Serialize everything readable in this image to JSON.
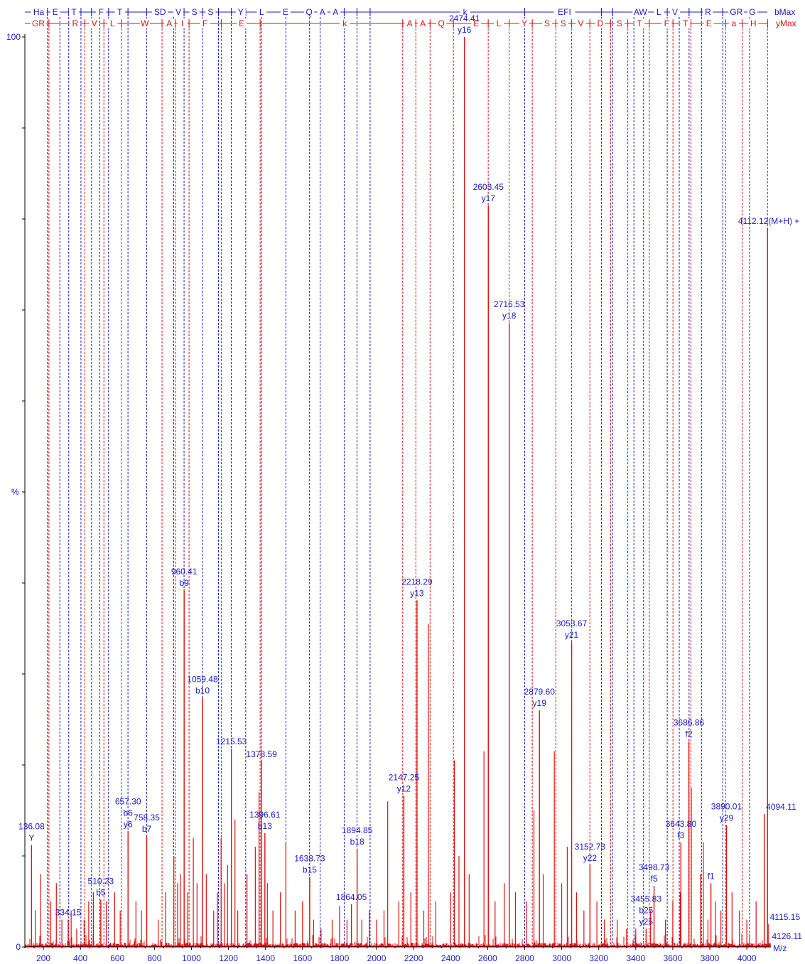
{
  "chart_data": {
    "type": "bar",
    "xlabel": "M/z",
    "ylabel": "%",
    "xlim": [
      100,
      4130
    ],
    "ylim": [
      0,
      100
    ],
    "xticks": [
      200,
      400,
      600,
      800,
      1000,
      1200,
      1400,
      1600,
      1800,
      2000,
      2200,
      2400,
      2600,
      2800,
      3000,
      3200,
      3400,
      3600,
      3800,
      4000
    ],
    "yticks": [
      0,
      100
    ],
    "colors": {
      "b_series": "#1a1acc",
      "y_series": "#e01010",
      "peaks": "#e01010"
    },
    "b_series": {
      "name": "bMax",
      "ladder": [
        {
          "label": "Ha",
          "x": 175
        },
        {
          "label": "E",
          "x": 264
        },
        {
          "label": "T",
          "x": 365
        },
        {
          "label": "F",
          "x": 512
        },
        {
          "label": "T",
          "x": 613
        },
        {
          "label": "SD",
          "x": 830
        },
        {
          "label": "V",
          "x": 929
        },
        {
          "label": "S",
          "x": 1016
        },
        {
          "label": "S",
          "x": 1103
        },
        {
          "label": "Y",
          "x": 1266
        },
        {
          "label": "L",
          "x": 1379
        },
        {
          "label": "E",
          "x": 1508
        },
        {
          "label": "Q",
          "x": 1636
        },
        {
          "label": "A",
          "x": 1707
        },
        {
          "label": "A",
          "x": 1778
        },
        {
          "label": "k",
          "x": 2478
        },
        {
          "label": "EFI",
          "x": 3015
        },
        {
          "label": "AW",
          "x": 3425
        },
        {
          "label": "L",
          "x": 3525
        },
        {
          "label": "V",
          "x": 3612
        },
        {
          "label": "R",
          "x": 3790
        },
        {
          "label": "GR",
          "x": 3943
        },
        {
          "label": "G",
          "x": 4030
        }
      ],
      "lines": [
        222,
        289,
        337,
        403,
        460,
        505,
        552,
        657,
        758,
        904,
        960,
        1059,
        1146,
        1215,
        1293,
        1378,
        1510,
        1638,
        1695,
        1825,
        1894,
        1965,
        2800,
        3215,
        3275,
        3390,
        3442,
        3570,
        3635,
        3688,
        3755,
        3870,
        4015
      ]
    },
    "y_series": {
      "name": "yMax",
      "ladder": [
        {
          "label": "GR",
          "x": 173
        },
        {
          "label": "R",
          "x": 372
        },
        {
          "label": "V",
          "x": 475
        },
        {
          "label": "L",
          "x": 573
        },
        {
          "label": "W",
          "x": 748
        },
        {
          "label": "A",
          "x": 880
        },
        {
          "label": "I",
          "x": 951
        },
        {
          "label": "F",
          "x": 1073
        },
        {
          "label": "E",
          "x": 1271
        },
        {
          "label": "k",
          "x": 1828
        },
        {
          "label": "A",
          "x": 2179
        },
        {
          "label": "A",
          "x": 2250
        },
        {
          "label": "Q",
          "x": 2350
        },
        {
          "label": "E",
          "x": 2538
        },
        {
          "label": "L",
          "x": 2660
        },
        {
          "label": "Y",
          "x": 2798
        },
        {
          "label": "S",
          "x": 2921
        },
        {
          "label": "S",
          "x": 3008
        },
        {
          "label": "V",
          "x": 3103
        },
        {
          "label": "D",
          "x": 3208
        },
        {
          "label": "S",
          "x": 3312
        },
        {
          "label": "T",
          "x": 3420
        },
        {
          "label": "F",
          "x": 3567
        },
        {
          "label": "T",
          "x": 3668
        },
        {
          "label": "E",
          "x": 3795
        },
        {
          "label": "a",
          "x": 3930
        },
        {
          "label": "H",
          "x": 4035
        }
      ],
      "lines": [
        230,
        424,
        527,
        621,
        841,
        913,
        987,
        1161,
        1371,
        2141,
        2212,
        2289,
        2415,
        2603,
        2716,
        2841,
        2968,
        3053,
        3152,
        3264,
        3357,
        3473,
        3601,
        3698,
        3885,
        3975,
        4112
      ]
    },
    "labeled_peaks": [
      {
        "x": 136.08,
        "y": 11.2,
        "labels": [
          "136.08",
          "Y"
        ]
      },
      {
        "x": 334.15,
        "y": 3.0,
        "labels": [
          "334.15"
        ]
      },
      {
        "x": 510.23,
        "y": 5.2,
        "labels": [
          "510.23",
          "b5"
        ]
      },
      {
        "x": 657.3,
        "y": 12.7,
        "labels": [
          "657.30",
          "b6",
          "y6"
        ]
      },
      {
        "x": 758.35,
        "y": 12.2,
        "labels": [
          "758.35",
          "b7"
        ]
      },
      {
        "x": 960.41,
        "y": 39.2,
        "labels": [
          "960.41",
          "b9"
        ]
      },
      {
        "x": 1059.48,
        "y": 27.4,
        "labels": [
          "1059.48",
          "b10"
        ]
      },
      {
        "x": 1215.53,
        "y": 21.8,
        "labels": [
          "1215.53"
        ]
      },
      {
        "x": 1378.59,
        "y": 20.4,
        "labels": [
          "1378.59"
        ]
      },
      {
        "x": 1396.61,
        "y": 12.5,
        "labels": [
          "1396.61",
          "b13"
        ]
      },
      {
        "x": 1638.73,
        "y": 7.7,
        "labels": [
          "1638.73",
          "b15"
        ]
      },
      {
        "x": 1864.05,
        "y": 4.7,
        "labels": [
          "1864.05"
        ]
      },
      {
        "x": 1894.85,
        "y": 10.8,
        "labels": [
          "1894.85",
          "b18"
        ]
      },
      {
        "x": 2147.25,
        "y": 16.6,
        "labels": [
          "2147.25",
          "y12"
        ]
      },
      {
        "x": 2218.29,
        "y": 38.1,
        "labels": [
          "2218.29",
          "y13"
        ]
      },
      {
        "x": 2474.41,
        "y": 100.0,
        "labels": [
          "2474.41",
          "y16"
        ]
      },
      {
        "x": 2603.45,
        "y": 81.5,
        "labels": [
          "2603.45",
          "y17"
        ]
      },
      {
        "x": 2716.53,
        "y": 68.6,
        "labels": [
          "2716.53",
          "y18"
        ]
      },
      {
        "x": 2879.6,
        "y": 26.0,
        "labels": [
          "2879.60",
          "y19"
        ]
      },
      {
        "x": 3053.67,
        "y": 33.5,
        "labels": [
          "3053.67",
          "y21"
        ]
      },
      {
        "x": 3152.73,
        "y": 9.0,
        "labels": [
          "3152.73",
          "y22"
        ]
      },
      {
        "x": 3455.83,
        "y": 2.0,
        "labels": [
          "3455.83",
          "b25",
          "y25"
        ]
      },
      {
        "x": 3498.73,
        "y": 6.7,
        "labels": [
          "3498.73",
          "f5"
        ]
      },
      {
        "x": 3643.8,
        "y": 11.5,
        "labels": [
          "3643.80",
          "f3"
        ]
      },
      {
        "x": 3686.86,
        "y": 22.6,
        "labels": [
          "3686.86",
          "f2"
        ]
      },
      {
        "x": 3806.0,
        "y": 7.0,
        "labels": [
          "f1"
        ]
      },
      {
        "x": 3890.01,
        "y": 13.4,
        "labels": [
          "3890.01",
          "y29"
        ]
      },
      {
        "x": 4094.11,
        "y": 14.6,
        "labels": [
          "4094.11"
        ]
      },
      {
        "x": 4112.12,
        "y": 79.0,
        "labels": [
          "4112.12(M+H) +"
        ]
      },
      {
        "x": 4115.15,
        "y": 2.5,
        "labels": [
          "4115.15"
        ]
      },
      {
        "x": 4126.11,
        "y": 0.4,
        "labels": [
          "4126.11"
        ]
      }
    ],
    "other_peaks": [
      [
        156,
        4
      ],
      [
        185,
        8
      ],
      [
        240,
        5
      ],
      [
        270,
        7
      ],
      [
        300,
        3
      ],
      [
        350,
        4
      ],
      [
        380,
        2
      ],
      [
        420,
        3
      ],
      [
        445,
        5
      ],
      [
        470,
        6
      ],
      [
        540,
        5
      ],
      [
        585,
        6
      ],
      [
        615,
        4
      ],
      [
        700,
        5
      ],
      [
        730,
        4
      ],
      [
        820,
        3
      ],
      [
        860,
        6
      ],
      [
        905,
        10
      ],
      [
        925,
        7
      ],
      [
        940,
        8
      ],
      [
        980,
        6
      ],
      [
        1010,
        12
      ],
      [
        1030,
        7
      ],
      [
        1080,
        8
      ],
      [
        1120,
        4
      ],
      [
        1140,
        6
      ],
      [
        1160,
        12
      ],
      [
        1180,
        7
      ],
      [
        1195,
        9
      ],
      [
        1235,
        14
      ],
      [
        1250,
        4
      ],
      [
        1300,
        8
      ],
      [
        1345,
        11
      ],
      [
        1365,
        17
      ],
      [
        1410,
        7
      ],
      [
        1440,
        4
      ],
      [
        1480,
        6
      ],
      [
        1510,
        11.5
      ],
      [
        1560,
        4
      ],
      [
        1600,
        5
      ],
      [
        1660,
        3
      ],
      [
        1700,
        2
      ],
      [
        1760,
        3
      ],
      [
        1800,
        4.5
      ],
      [
        1840,
        3
      ],
      [
        1920,
        3
      ],
      [
        1960,
        4
      ],
      [
        2000,
        3
      ],
      [
        2040,
        4
      ],
      [
        2060,
        16
      ],
      [
        2120,
        5
      ],
      [
        2185,
        6
      ],
      [
        2255,
        4
      ],
      [
        2280,
        35.5
      ],
      [
        2320,
        5
      ],
      [
        2400,
        6
      ],
      [
        2420,
        20.5
      ],
      [
        2445,
        10
      ],
      [
        2500,
        8
      ],
      [
        2580,
        21.5
      ],
      [
        2640,
        5
      ],
      [
        2690,
        7
      ],
      [
        2750,
        6
      ],
      [
        2810,
        5
      ],
      [
        2850,
        15
      ],
      [
        2900,
        8
      ],
      [
        2960,
        21.5
      ],
      [
        3000,
        7
      ],
      [
        3030,
        11
      ],
      [
        3080,
        6
      ],
      [
        3120,
        4
      ],
      [
        3190,
        5
      ],
      [
        3230,
        3
      ],
      [
        3300,
        3
      ],
      [
        3350,
        2
      ],
      [
        3400,
        2
      ],
      [
        3480,
        4
      ],
      [
        3560,
        3
      ],
      [
        3600,
        5
      ],
      [
        3640,
        6
      ],
      [
        3700,
        17.5
      ],
      [
        3750,
        8
      ],
      [
        3765,
        11.5
      ],
      [
        3790,
        3
      ],
      [
        3830,
        5
      ],
      [
        3860,
        4
      ],
      [
        3920,
        6
      ],
      [
        3960,
        4
      ],
      [
        4000,
        3
      ],
      [
        4050,
        5
      ]
    ]
  }
}
